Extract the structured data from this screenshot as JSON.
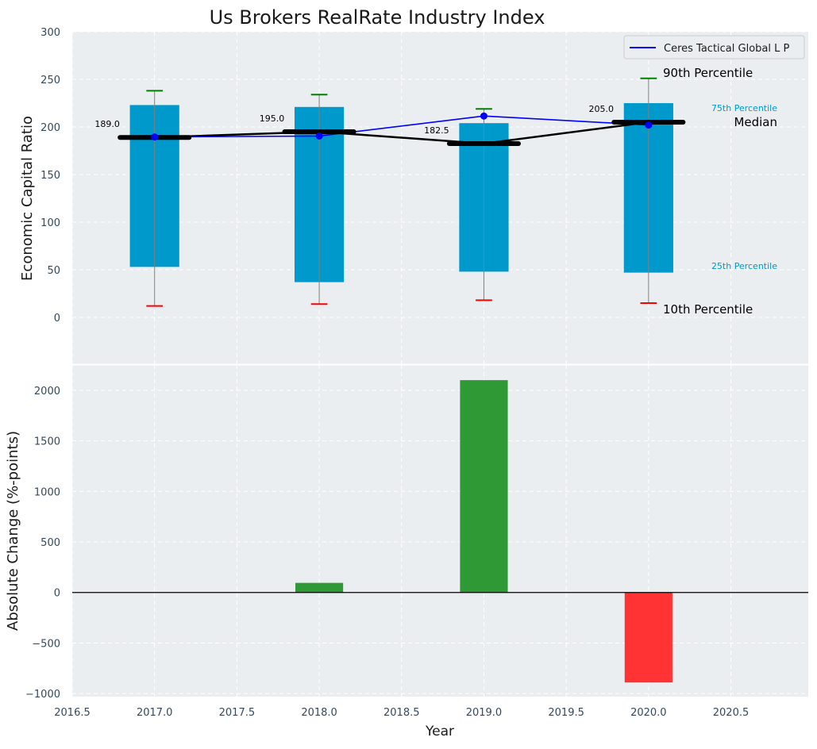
{
  "chart_data": {
    "title": "Us Brokers RealRate Industry Index",
    "x_ticks": [
      2016.5,
      2017.0,
      2017.5,
      2018.0,
      2018.5,
      2019.0,
      2019.5,
      2020.0,
      2020.5
    ],
    "x_tick_labels": [
      "2016.5",
      "2017.0",
      "2017.5",
      "2018.0",
      "2018.5",
      "2019.0",
      "2019.5",
      "2020.0",
      "2020.5"
    ],
    "xlim": [
      2016.5,
      2020.97
    ],
    "xlabel": "Year",
    "top": {
      "type": "bar",
      "ylabel": "Economic Capital Ratio",
      "ylim": [
        -50,
        300
      ],
      "y_ticks": [
        0,
        50,
        100,
        150,
        200,
        250,
        300
      ],
      "grid": true,
      "years": [
        2017,
        2018,
        2019,
        2020
      ],
      "p10": [
        12,
        14,
        18,
        15
      ],
      "p25": [
        53,
        37,
        48,
        47
      ],
      "median": [
        189.0,
        195.0,
        182.5,
        205.0
      ],
      "median_labels": [
        "189.0",
        "195.0",
        "182.5",
        "205.0"
      ],
      "p75": [
        223,
        221,
        204,
        225
      ],
      "p90": [
        238,
        234,
        219,
        251
      ],
      "company_series": {
        "name": "Ceres Tactical Global L P",
        "values": [
          189.5,
          190.5,
          211.5,
          202.0
        ]
      },
      "legend_position": "upper right",
      "annotations": {
        "p90": "90th Percentile",
        "p75": "75th Percentile",
        "median": "Median",
        "p25": "25th Percentile",
        "p10": "10th Percentile"
      },
      "colors": {
        "box": "#0099cc",
        "median": "#000000",
        "company": "#0000ff",
        "p90_cap": "#008000",
        "p10_cap": "#ff0000",
        "whisker": "#808080"
      }
    },
    "bottom": {
      "type": "bar",
      "ylabel": "Absolute Change (%-points)",
      "ylim": [
        -1030,
        2250
      ],
      "y_ticks": [
        -1000,
        -500,
        0,
        500,
        1000,
        1500,
        2000
      ],
      "y_tick_labels": [
        "−1000",
        "−500",
        "0",
        "500",
        "1000",
        "1500",
        "2000"
      ],
      "grid": true,
      "years": [
        2017,
        2018,
        2019,
        2020
      ],
      "values": [
        0,
        95,
        2100,
        -890
      ],
      "colors": {
        "positive": "#2e9935",
        "negative": "#ff3333"
      }
    }
  }
}
